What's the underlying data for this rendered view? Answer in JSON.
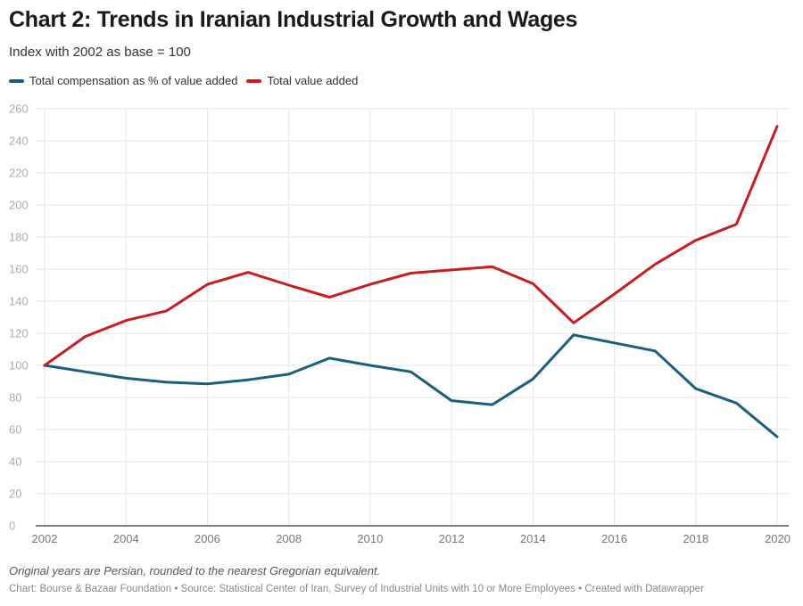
{
  "chart_data": {
    "type": "line",
    "title": "Chart 2: Trends in Iranian Industrial Growth and Wages",
    "subtitle": "Index with 2002 as base = 100",
    "xlabel": "",
    "ylabel": "",
    "x": [
      2002,
      2003,
      2004,
      2005,
      2006,
      2007,
      2008,
      2009,
      2010,
      2011,
      2012,
      2013,
      2014,
      2015,
      2016,
      2017,
      2018,
      2019,
      2020
    ],
    "x_ticks": [
      "2002",
      "2004",
      "2006",
      "2008",
      "2010",
      "2012",
      "2014",
      "2016",
      "2018",
      "2020"
    ],
    "x_range": [
      2002,
      2020
    ],
    "y_ticks": [
      "0",
      "20",
      "40",
      "60",
      "80",
      "100",
      "120",
      "140",
      "160",
      "180",
      "200",
      "220",
      "240",
      "260"
    ],
    "ylim": [
      0,
      260
    ],
    "grid": true,
    "legend_position": "top-left",
    "series": [
      {
        "name": "Total compensation as % of value added",
        "color": "#1b5e7b",
        "values": [
          100,
          96,
          92,
          89.5,
          88.5,
          91,
          94.5,
          104.5,
          100,
          96,
          78,
          75.5,
          91.5,
          119,
          114,
          109,
          85.5,
          76.5,
          55.5
        ]
      },
      {
        "name": "Total value added",
        "color": "#c71e1d",
        "values": [
          100,
          118,
          128,
          134,
          150.5,
          158,
          150,
          142.5,
          150.5,
          157.5,
          159.5,
          161.5,
          151,
          126.5,
          144.5,
          163,
          178,
          188,
          249
        ]
      }
    ],
    "note": "Original years are Persian, rounded to the nearest Gregorian equivalent.",
    "source": "Chart: Bourse & Bazaar Foundation • Source: Statistical Center of Iran, Survey of Industrial Units with 10 or More Employees • Created with Datawrapper"
  }
}
